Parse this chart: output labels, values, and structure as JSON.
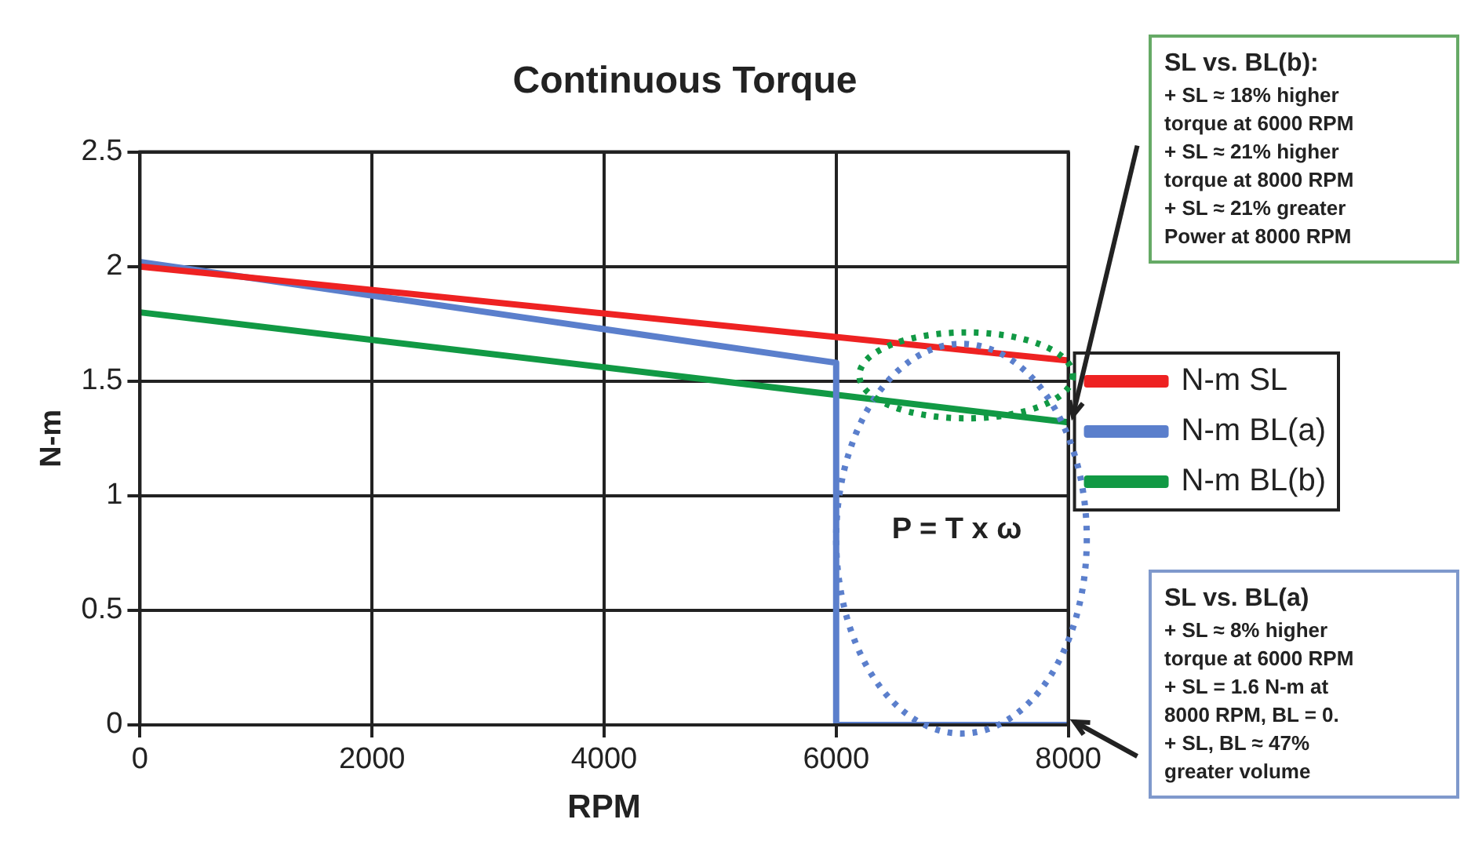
{
  "chart_data": {
    "type": "line",
    "title": "Continuous Torque",
    "xlabel": "RPM",
    "ylabel": "N-m",
    "x": [
      0,
      8000
    ],
    "series": [
      {
        "name": "N-m SL",
        "color": "#ee2222",
        "values": [
          2.0,
          1.59
        ]
      },
      {
        "name": "N-m BL(a)",
        "color": "#5b7fcc",
        "x": [
          0,
          6000,
          6000,
          8000
        ],
        "values": [
          2.02,
          1.58,
          0,
          0
        ]
      },
      {
        "name": "N-m BL(b)",
        "color": "#119944",
        "values": [
          1.8,
          1.32
        ]
      }
    ],
    "xlim": [
      0,
      8000
    ],
    "xticks": [
      0,
      2000,
      4000,
      6000,
      8000
    ],
    "ylim": [
      0,
      2.5
    ],
    "yticks": [
      0,
      0.5,
      1,
      1.5,
      2,
      2.5
    ],
    "grid": true,
    "legend": "right",
    "marker": "none",
    "line_style": "solid",
    "annotations": [
      "SL vs. BL(b):\n+ SL ≈ 18% higher\ntorque at 6000 RPM\n+ SL ≈ 21% higher\ntorque at 8000 RPM\n+ SL ≈ 21% greater\nPower at 8000 RPM",
      "SL vs. BL(a)\n+ SL ≈ 8% higher\ntorque at 6000 RPM\n+ SL = 1.6 N-m at\n8000 RPM, BL = 0.\n+ SL, BL ≈ 47%\ngreater volume",
      "P = T x ω"
    ]
  }
}
